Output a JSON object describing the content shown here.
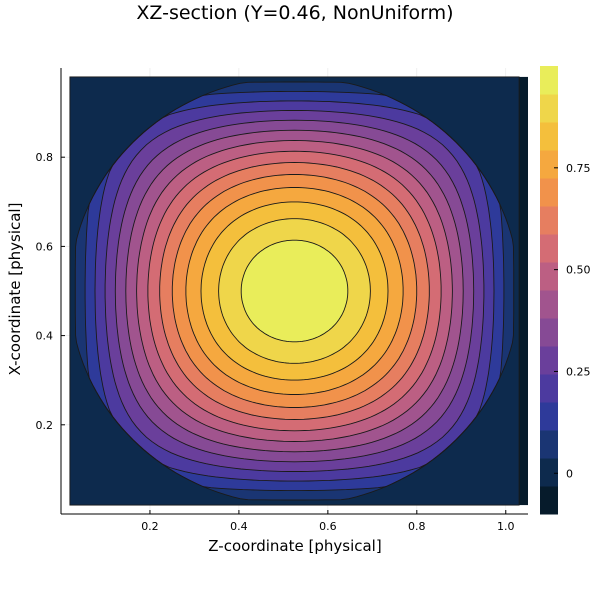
{
  "chart_data": {
    "type": "heatmap",
    "subtype": "filled-contour",
    "title": "XZ-section (Y=0.46, NonUniform)",
    "xlabel": "Z-coordinate [physical]",
    "ylabel": "X-coordinate [physical]",
    "xlim": [
      0.0,
      1.05
    ],
    "ylim": [
      0.0,
      1.0
    ],
    "x_ticks": [
      0.2,
      0.4,
      0.6,
      0.8,
      1.0
    ],
    "x_tick_labels": [
      "0.2",
      "0.4",
      "0.6",
      "0.8",
      "1.0"
    ],
    "y_ticks": [
      0.2,
      0.4,
      0.6,
      0.8
    ],
    "y_tick_labels": [
      "0.2",
      "0.4",
      "0.6",
      "0.8"
    ],
    "domain_z": [
      0.02,
      1.03
    ],
    "domain_x": [
      0.02,
      0.98
    ],
    "peak": {
      "z": 0.5,
      "x": 0.5,
      "value": 0.97
    },
    "colorbar": {
      "ticks": [
        0,
        0.25,
        0.5,
        0.75
      ],
      "tick_labels": [
        "0",
        "0.25",
        "0.50",
        "0.75"
      ],
      "range": [
        -0.1,
        1.0
      ],
      "colors": [
        "#061b2b",
        "#0d2a4d",
        "#1a3573",
        "#2e3a9a",
        "#4c3a9f",
        "#6a3f9b",
        "#864a95",
        "#a1548e",
        "#bc5f83",
        "#d46c74",
        "#e67e60",
        "#f1924b",
        "#f5a83f",
        "#f4bf3c",
        "#efd64a",
        "#e9ed5a"
      ]
    },
    "grid": true,
    "legend": "none",
    "colormap": "thermal"
  }
}
